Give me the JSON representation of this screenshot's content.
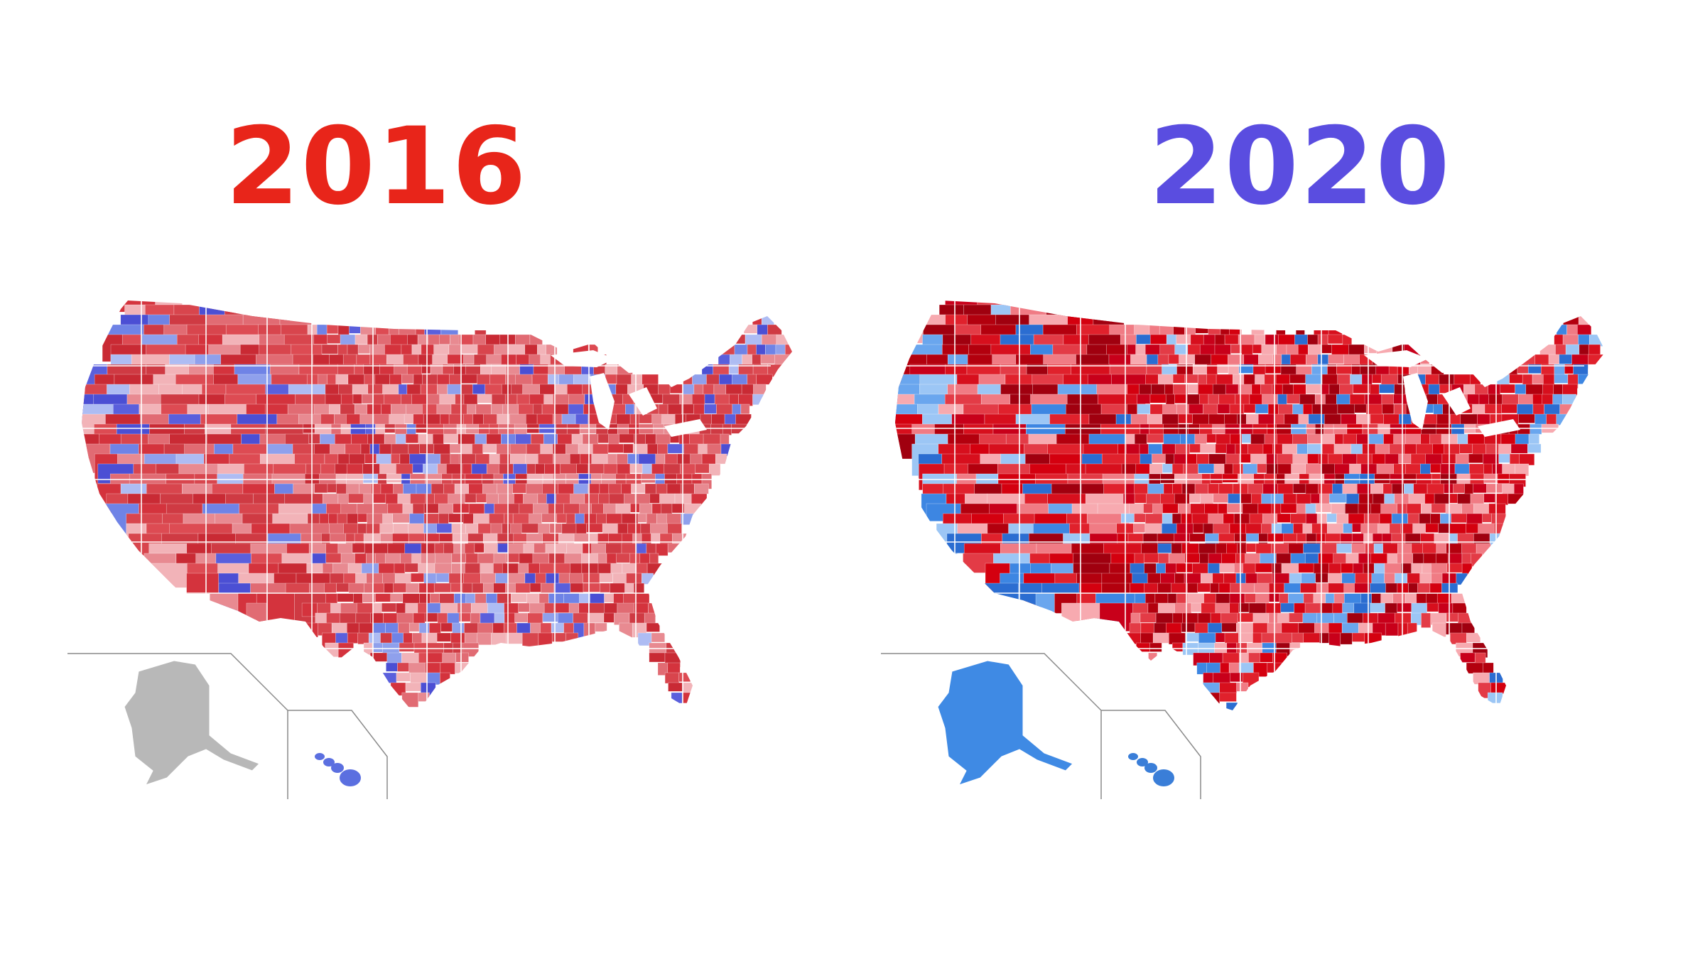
{
  "maps": [
    {
      "year": "2016",
      "title_color": "#e8251a",
      "palette": [
        "#d4333d",
        "#dd4b53",
        "#e16b73",
        "#c92a34",
        "#e88a91",
        "#f2b3b8",
        "#cf3a43",
        "#d8454d",
        "#8fa0ec",
        "#6f83e6",
        "#5a5fdc",
        "#4b4fd4",
        "#aebcf3"
      ],
      "alaska_fill": "#b8b8b8",
      "hawaii_fill": "#5b6fe0",
      "borders": "#ffffff"
    },
    {
      "year": "2020",
      "title_color": "#5a4de0",
      "palette": [
        "#d4000f",
        "#c8001a",
        "#b3000e",
        "#e0212c",
        "#a0000f",
        "#e33b46",
        "#f07b84",
        "#f7aab0",
        "#d70f1d",
        "#3d86e2",
        "#6aa6ee",
        "#9cc6f5",
        "#2b6dd1"
      ],
      "alaska_fill": "#3f8ae4",
      "hawaii_fill": "#3a7ed8",
      "borders": "#ffffff"
    }
  ],
  "colors": {
    "inset_line": "#8a8a8a",
    "background": "#ffffff"
  }
}
